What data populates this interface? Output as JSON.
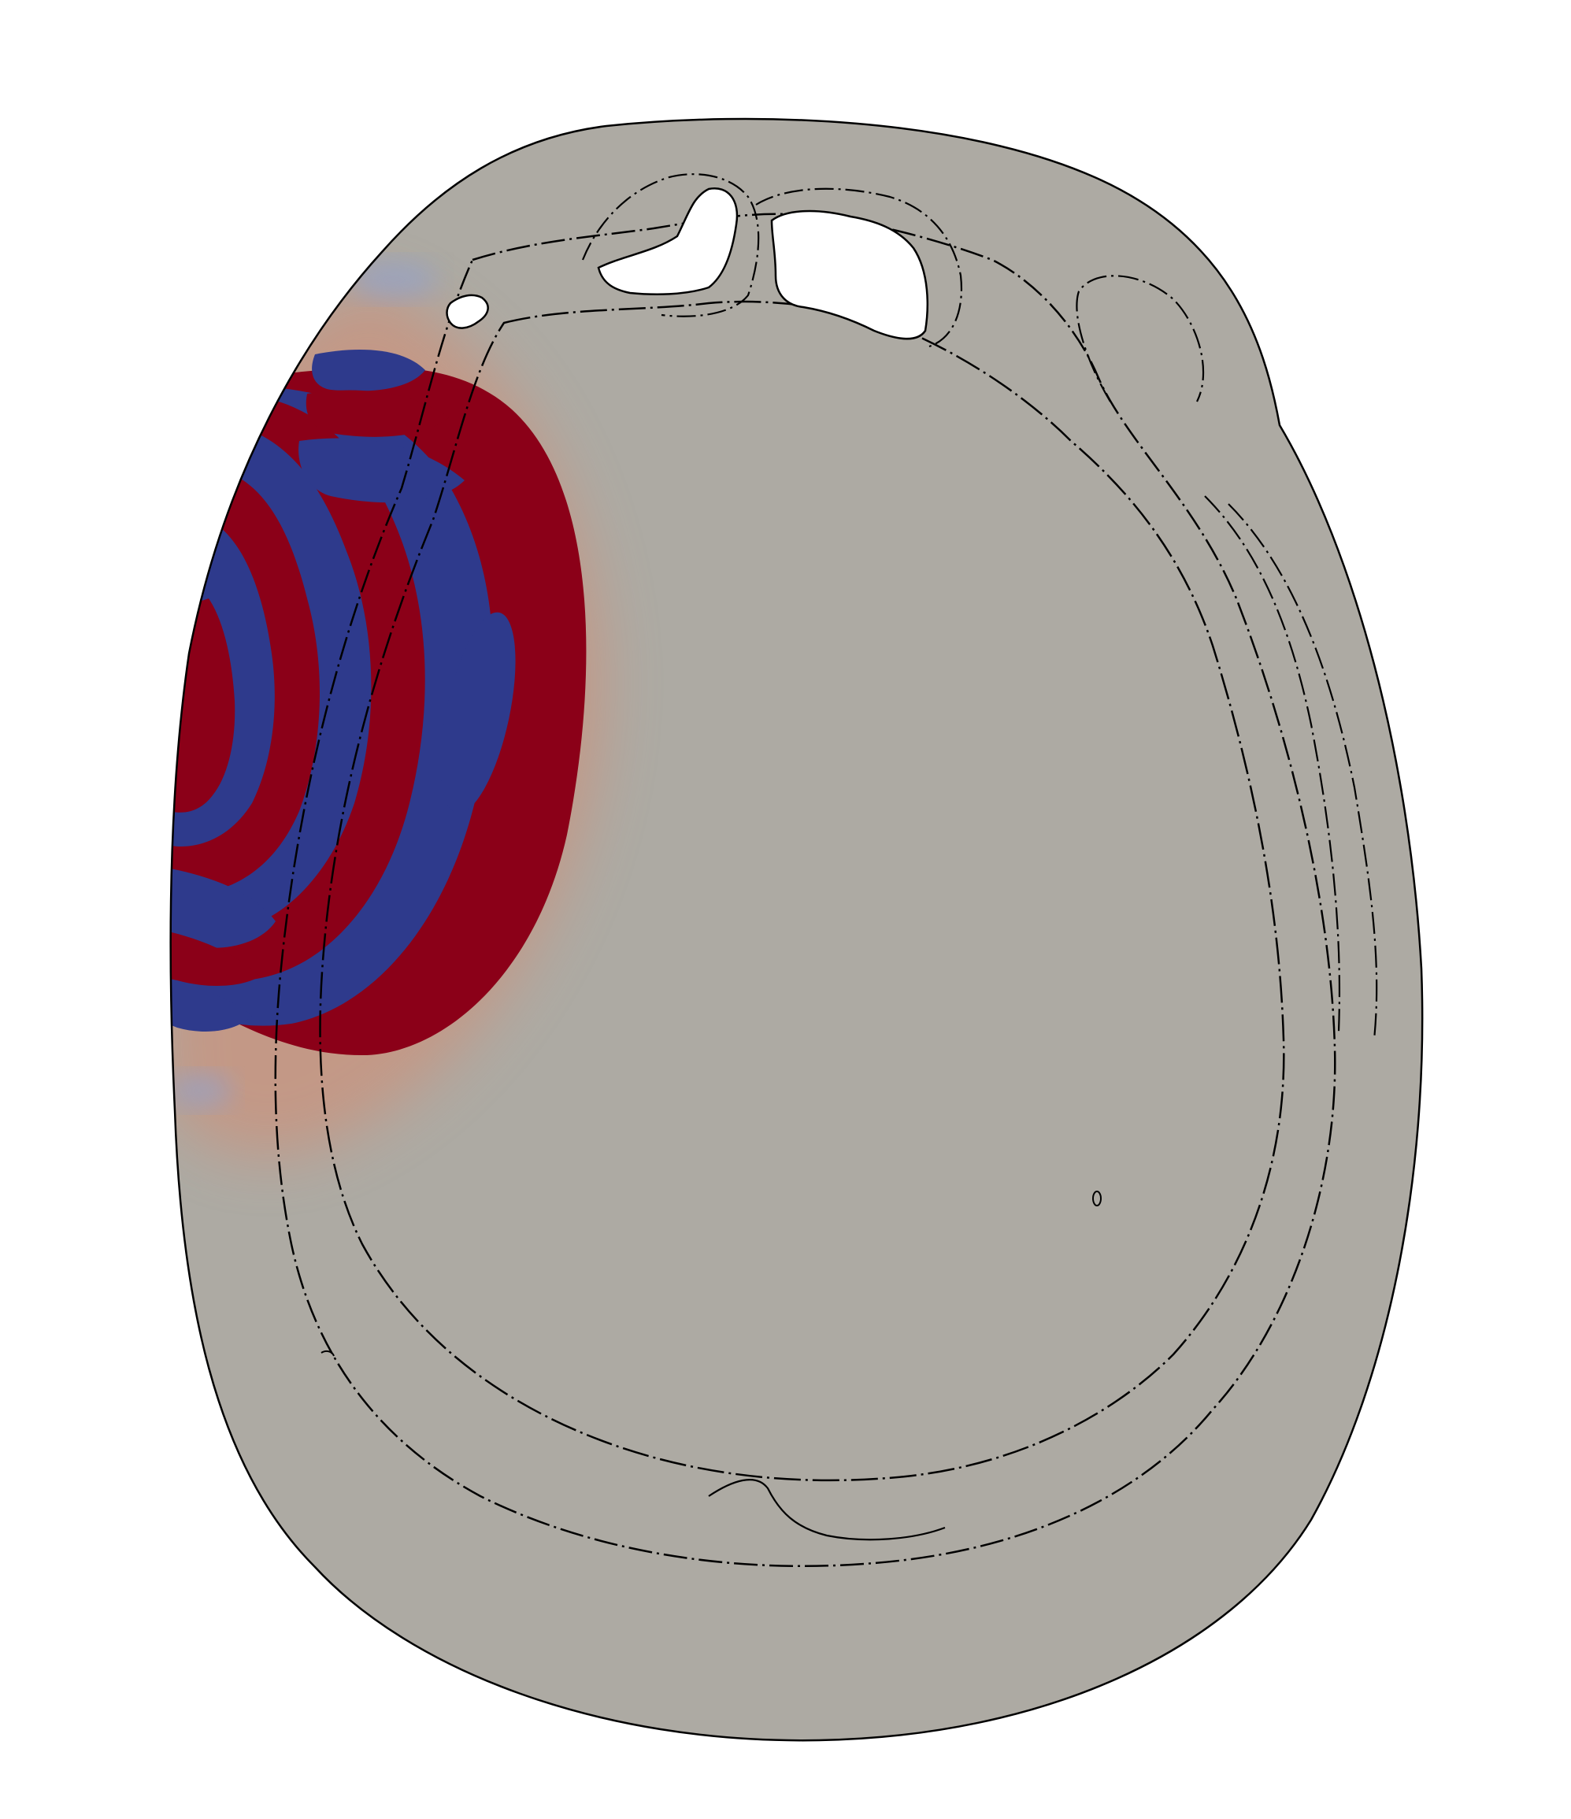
{
  "figure": {
    "colors": {
      "background": "#ffffff",
      "tissue": "#adaaa3",
      "positive": "#8b0018",
      "negative": "#2e3a8c",
      "halo_warm": "#d58a70",
      "halo_cool": "#8fa2cf",
      "outline": "#000000",
      "cavity": "#ffffff"
    },
    "icons": [
      "head-cross-section",
      "wave-field-overlay",
      "skull-contour"
    ]
  }
}
